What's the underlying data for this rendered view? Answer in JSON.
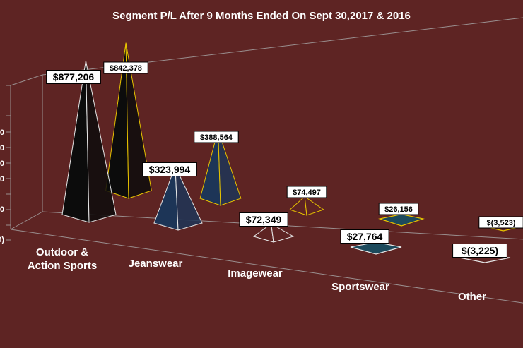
{
  "chart_data": {
    "type": "bar",
    "title": "Segment P/L After 9 Months Ended On Sept 30,2017 & 2016",
    "categories": [
      "Outdoor & Action Sports",
      "Jeanswear",
      "Imagewear",
      "Sportswear",
      "Other"
    ],
    "category_lines": [
      [
        "Outdoor &",
        "Action Sports"
      ],
      [
        "Jeanswear"
      ],
      [
        "Imagewear"
      ],
      [
        "Sportswear"
      ],
      [
        "Other"
      ]
    ],
    "series": [
      {
        "values": [
          877206,
          323994,
          72349,
          27764,
          -3225
        ],
        "labels": [
          "$877,206",
          "$323,994",
          "$72,349",
          "$27,764",
          "$(3,225)"
        ],
        "colors": [
          "#0c0c0c",
          "#1d3557",
          "#5e2423",
          "#1c4a5c",
          "#5e2423"
        ],
        "edge": "#e6e6e6"
      },
      {
        "values": [
          842378,
          388564,
          74497,
          26156,
          -3523
        ],
        "labels": [
          "$842,378",
          "$388,564",
          "$74,497",
          "$26,156",
          "$(3,523)"
        ],
        "colors": [
          "#0c0c0c",
          "#1d3557",
          "#5e2423",
          "#1c4a5c",
          "#5e2423"
        ],
        "edge": "#e6c200"
      }
    ],
    "axis_tick_fragments": [
      "0",
      "0",
      "0",
      "0",
      "0",
      "00)"
    ],
    "background": "#5e2423",
    "grid": false,
    "legend": "none",
    "style": "3d-pyramid"
  }
}
